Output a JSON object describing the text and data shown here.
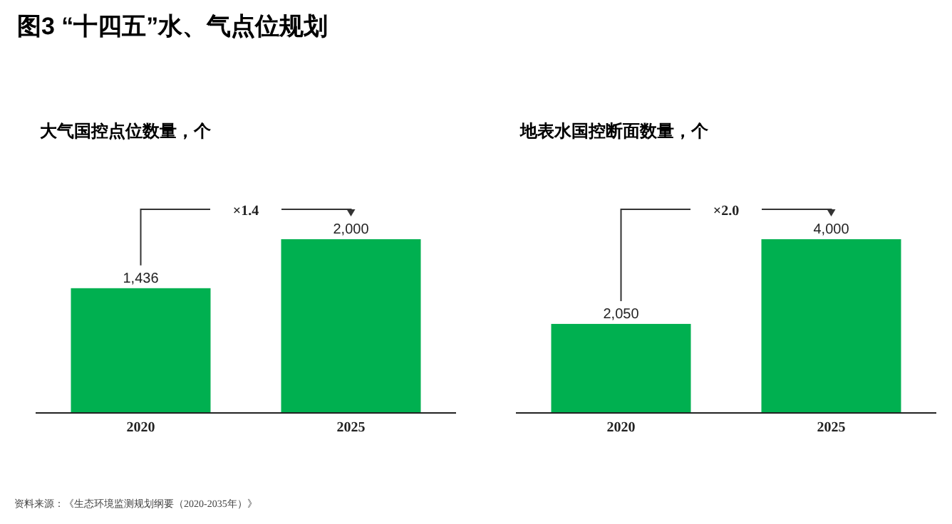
{
  "chart_data": [
    {
      "type": "bar",
      "title": "图3 “十四五”水、气点位规划",
      "subtitle": "大气国控点位数量，个",
      "categories": [
        "2020",
        "2025"
      ],
      "values": [
        1436,
        2000
      ],
      "value_labels": [
        "1,436",
        "2,000"
      ],
      "color": "#00b050",
      "annotations": [
        "×1.4"
      ]
    },
    {
      "type": "bar",
      "subtitle": "地表水国控断面数量，个",
      "categories": [
        "2020",
        "2025"
      ],
      "values": [
        2050,
        4000
      ],
      "value_labels": [
        "2,050",
        "4,000"
      ],
      "color": "#00b050",
      "annotations": [
        "×2.0",
        "资料来源：《生态环境监测规划纲要（2020-2035年）》"
      ]
    }
  ]
}
